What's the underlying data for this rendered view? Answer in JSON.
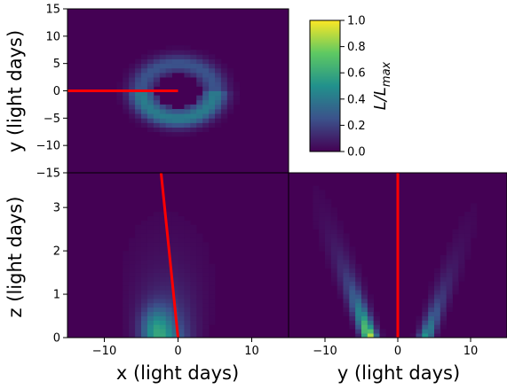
{
  "chart_data": [
    {
      "id": "xy",
      "type": "heatmap",
      "xlabel": "",
      "ylabel": "y (light days)",
      "xlim": [
        -15,
        15
      ],
      "ylim": [
        -15,
        15
      ],
      "yticks": [
        -15,
        -10,
        -5,
        0,
        5,
        10,
        15
      ],
      "feature": "ring of emission around origin, brighter at negative y, dark core",
      "line": {
        "color": "#ff0000",
        "x": [
          -15,
          0
        ],
        "y": [
          0,
          0
        ]
      }
    },
    {
      "id": "xz",
      "type": "heatmap",
      "xlabel": "x (light days)",
      "ylabel": "z (light days)",
      "xlim": [
        -15,
        15
      ],
      "ylim": [
        0,
        3.8
      ],
      "xticks": [
        -10,
        0,
        10
      ],
      "yticks": [
        0,
        1,
        2,
        3
      ],
      "feature": "cone-shaped emission widening with z, peak near x=-3, z=0.2",
      "line": {
        "color": "#ff0000",
        "x": [
          -2.3,
          0
        ],
        "y": [
          3.8,
          0
        ]
      }
    },
    {
      "id": "yz",
      "type": "heatmap",
      "xlabel": "y (light days)",
      "ylabel": "",
      "xlim": [
        -15,
        15
      ],
      "ylim": [
        0,
        3.8
      ],
      "xticks": [
        -10,
        0,
        10
      ],
      "feature": "V-shaped emission, strongest at y=-4, z=0.3",
      "line": {
        "color": "#ff0000",
        "x": [
          0,
          0
        ],
        "y": [
          0,
          3.8
        ]
      }
    }
  ],
  "colorbar": {
    "label": "L/L_max",
    "range": [
      0,
      1
    ],
    "ticks": [
      "0.0",
      "0.2",
      "0.4",
      "0.6",
      "0.8",
      "1.0"
    ],
    "colormap": "viridis"
  },
  "text": {
    "xy_ylabel": "y (light days)",
    "xz_xlabel": "x (light days)",
    "xz_ylabel": "z (light days)",
    "yz_xlabel": "y (light days)",
    "cb_label_main": "L/L",
    "cb_label_sub": "max"
  }
}
